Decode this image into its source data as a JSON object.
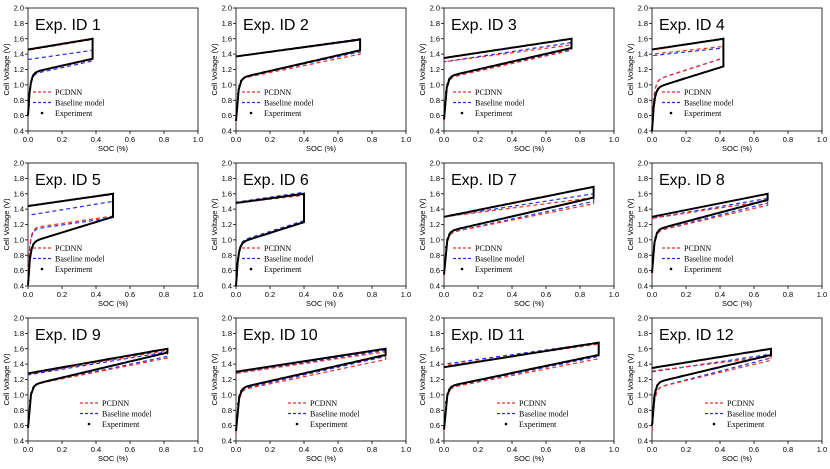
{
  "figure": {
    "xlabel": "SOC (%)",
    "ylabel": "Cell Voltage (V)",
    "xticks": [
      "0.0",
      "0.2",
      "0.4",
      "0.6",
      "0.8",
      "1.0"
    ],
    "yticks": [
      "0.4",
      "0.6",
      "0.8",
      "1.0",
      "1.2",
      "1.4",
      "1.6",
      "1.8",
      "2.0"
    ],
    "legend": [
      "PCDNN",
      "Baseline model",
      "Experiment"
    ],
    "colors": {
      "pcdnn": "#e8322b",
      "baseline": "#2a2ae0",
      "experiment": "#000000",
      "axis": "#000000"
    }
  },
  "chart_data": [
    {
      "type": "line",
      "title": "Exp. ID 1",
      "xlim": [
        0,
        1
      ],
      "ylim": [
        0.4,
        2.0
      ],
      "soc_max": 0.38,
      "series": [
        {
          "name": "Experiment",
          "charge": [
            1.46,
            1.6
          ],
          "discharge": [
            1.15,
            1.34
          ]
        },
        {
          "name": "PCDNN",
          "charge": [
            1.45,
            1.59
          ],
          "discharge": [
            1.15,
            1.33
          ]
        },
        {
          "name": "Baseline model",
          "charge": [
            1.33,
            1.45
          ],
          "discharge": [
            1.13,
            1.31
          ]
        }
      ]
    },
    {
      "type": "line",
      "title": "Exp. ID 2",
      "xlim": [
        0,
        1
      ],
      "ylim": [
        0.4,
        2.0
      ],
      "soc_max": 0.73,
      "series": [
        {
          "name": "Experiment",
          "charge": [
            1.37,
            1.59
          ],
          "discharge": [
            1.08,
            1.45
          ]
        },
        {
          "name": "PCDNN",
          "charge": [
            1.37,
            1.58
          ],
          "discharge": [
            1.07,
            1.4
          ]
        },
        {
          "name": "Baseline model",
          "charge": [
            1.37,
            1.6
          ],
          "discharge": [
            1.08,
            1.43
          ]
        }
      ]
    },
    {
      "type": "line",
      "title": "Exp. ID 3",
      "xlim": [
        0,
        1
      ],
      "ylim": [
        0.4,
        2.0
      ],
      "soc_max": 0.75,
      "series": [
        {
          "name": "Experiment",
          "charge": [
            1.35,
            1.6
          ],
          "discharge": [
            1.1,
            1.48
          ]
        },
        {
          "name": "PCDNN",
          "charge": [
            1.3,
            1.52
          ],
          "discharge": [
            1.08,
            1.45
          ]
        },
        {
          "name": "Baseline model",
          "charge": [
            1.3,
            1.55
          ],
          "discharge": [
            1.08,
            1.46
          ]
        }
      ]
    },
    {
      "type": "line",
      "title": "Exp. ID 4",
      "xlim": [
        0,
        1
      ],
      "ylim": [
        0.4,
        2.0
      ],
      "soc_max": 0.42,
      "series": [
        {
          "name": "Experiment",
          "charge": [
            1.46,
            1.6
          ],
          "discharge": [
            0.95,
            1.24
          ]
        },
        {
          "name": "PCDNN",
          "charge": [
            1.4,
            1.5
          ],
          "discharge": [
            1.05,
            1.35
          ]
        },
        {
          "name": "Baseline model",
          "charge": [
            1.38,
            1.48
          ],
          "discharge": [
            1.05,
            1.35
          ]
        }
      ]
    },
    {
      "type": "line",
      "title": "Exp. ID 5",
      "xlim": [
        0,
        1
      ],
      "ylim": [
        0.4,
        2.0
      ],
      "soc_max": 0.5,
      "series": [
        {
          "name": "Experiment",
          "charge": [
            1.44,
            1.6
          ],
          "discharge": [
            0.96,
            1.3
          ]
        },
        {
          "name": "PCDNN",
          "charge": [
            1.44,
            1.59
          ],
          "discharge": [
            1.15,
            1.31
          ]
        },
        {
          "name": "Baseline model",
          "charge": [
            1.32,
            1.5
          ],
          "discharge": [
            1.13,
            1.29
          ]
        }
      ]
    },
    {
      "type": "line",
      "title": "Exp. ID 6",
      "xlim": [
        0,
        1
      ],
      "ylim": [
        0.4,
        2.0
      ],
      "soc_max": 0.4,
      "series": [
        {
          "name": "Experiment",
          "charge": [
            1.48,
            1.6
          ],
          "discharge": [
            0.95,
            1.23
          ]
        },
        {
          "name": "PCDNN",
          "charge": [
            1.48,
            1.58
          ],
          "discharge": [
            0.95,
            1.23
          ]
        },
        {
          "name": "Baseline model",
          "charge": [
            1.49,
            1.62
          ],
          "discharge": [
            0.97,
            1.25
          ]
        }
      ]
    },
    {
      "type": "line",
      "title": "Exp. ID 7",
      "xlim": [
        0,
        1
      ],
      "ylim": [
        0.4,
        2.0
      ],
      "soc_max": 0.88,
      "series": [
        {
          "name": "Experiment",
          "charge": [
            1.3,
            1.69
          ],
          "discharge": [
            1.1,
            1.55
          ]
        },
        {
          "name": "PCDNN",
          "charge": [
            1.3,
            1.55
          ],
          "discharge": [
            1.08,
            1.47
          ]
        },
        {
          "name": "Baseline model",
          "charge": [
            1.3,
            1.6
          ],
          "discharge": [
            1.08,
            1.5
          ]
        }
      ]
    },
    {
      "type": "line",
      "title": "Exp. ID 8",
      "xlim": [
        0,
        1
      ],
      "ylim": [
        0.4,
        2.0
      ],
      "soc_max": 0.68,
      "series": [
        {
          "name": "Experiment",
          "charge": [
            1.3,
            1.6
          ],
          "discharge": [
            1.12,
            1.52
          ]
        },
        {
          "name": "PCDNN",
          "charge": [
            1.28,
            1.51
          ],
          "discharge": [
            1.1,
            1.45
          ]
        },
        {
          "name": "Baseline model",
          "charge": [
            1.28,
            1.54
          ],
          "discharge": [
            1.1,
            1.48
          ]
        }
      ]
    },
    {
      "type": "line",
      "title": "Exp. ID 9",
      "xlim": [
        0,
        1
      ],
      "ylim": [
        0.4,
        2.0
      ],
      "soc_max": 0.82,
      "series": [
        {
          "name": "Experiment",
          "charge": [
            1.28,
            1.6
          ],
          "discharge": [
            1.12,
            1.55
          ]
        },
        {
          "name": "PCDNN",
          "charge": [
            1.27,
            1.58
          ],
          "discharge": [
            1.12,
            1.48
          ]
        },
        {
          "name": "Baseline model",
          "charge": [
            1.26,
            1.56
          ],
          "discharge": [
            1.12,
            1.5
          ]
        }
      ]
    },
    {
      "type": "line",
      "title": "Exp. ID 10",
      "xlim": [
        0,
        1
      ],
      "ylim": [
        0.4,
        2.0
      ],
      "soc_max": 0.88,
      "series": [
        {
          "name": "Experiment",
          "charge": [
            1.3,
            1.6
          ],
          "discharge": [
            1.08,
            1.52
          ]
        },
        {
          "name": "PCDNN",
          "charge": [
            1.28,
            1.56
          ],
          "discharge": [
            1.05,
            1.46
          ]
        },
        {
          "name": "Baseline model",
          "charge": [
            1.28,
            1.58
          ],
          "discharge": [
            1.06,
            1.5
          ]
        }
      ]
    },
    {
      "type": "line",
      "title": "Exp. ID 11",
      "xlim": [
        0,
        1
      ],
      "ylim": [
        0.4,
        2.0
      ],
      "soc_max": 0.91,
      "series": [
        {
          "name": "Experiment",
          "charge": [
            1.36,
            1.68
          ],
          "discharge": [
            1.1,
            1.52
          ]
        },
        {
          "name": "PCDNN",
          "charge": [
            1.38,
            1.66
          ],
          "discharge": [
            1.08,
            1.47
          ]
        },
        {
          "name": "Baseline model",
          "charge": [
            1.4,
            1.68
          ],
          "discharge": [
            1.09,
            1.5
          ]
        }
      ]
    },
    {
      "type": "line",
      "title": "Exp. ID 12",
      "xlim": [
        0,
        1
      ],
      "ylim": [
        0.4,
        2.0
      ],
      "soc_max": 0.7,
      "series": [
        {
          "name": "Experiment",
          "charge": [
            1.35,
            1.6
          ],
          "discharge": [
            1.15,
            1.52
          ]
        },
        {
          "name": "PCDNN",
          "charge": [
            1.31,
            1.5
          ],
          "discharge": [
            1.08,
            1.45
          ]
        },
        {
          "name": "Baseline model",
          "charge": [
            1.3,
            1.53
          ],
          "discharge": [
            1.08,
            1.48
          ]
        }
      ]
    }
  ]
}
